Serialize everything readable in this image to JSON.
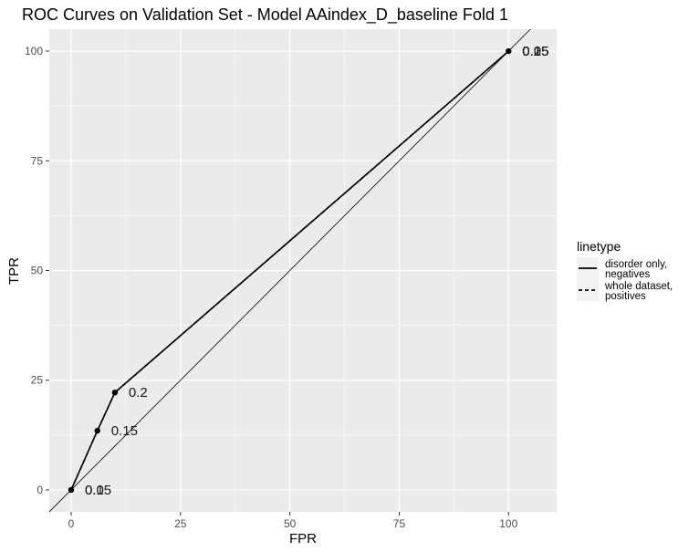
{
  "chart_data": {
    "type": "line",
    "title": "ROC Curves on Validation Set - Model AAindex_D_baseline Fold 1",
    "xlabel": "FPR",
    "ylabel": "TPR",
    "xlim": [
      -5,
      111
    ],
    "ylim": [
      -5,
      105
    ],
    "x_ticks": [
      0,
      25,
      50,
      75,
      100
    ],
    "y_ticks": [
      0,
      25,
      50,
      75,
      100
    ],
    "grid": true,
    "background": "#ebebeb",
    "grid_color": "#ffffff",
    "legend": {
      "title": "linetype",
      "position": "right",
      "entries": [
        {
          "line1": "disorder only,",
          "line2": "negatives",
          "dash": "solid"
        },
        {
          "line1": "whole dataset,",
          "line2": "positives",
          "dash": "dashed"
        }
      ]
    },
    "diagonal": true,
    "series": [
      {
        "linetype": "solid",
        "points": [
          {
            "x": 0,
            "y": 0,
            "label": "0.05"
          },
          {
            "x": 6,
            "y": 13.5,
            "label": "0.15"
          },
          {
            "x": 10,
            "y": 22.2,
            "label": "0.2"
          },
          {
            "x": 100,
            "y": 100,
            "label": "0.25"
          }
        ]
      },
      {
        "linetype": "dashed",
        "points": [
          {
            "x": 0,
            "y": 0,
            "label": "0.1"
          },
          {
            "x": 6,
            "y": 13.5,
            "label": ""
          },
          {
            "x": 10,
            "y": 22.2,
            "label": ""
          },
          {
            "x": 100,
            "y": 100,
            "label": "0.05"
          }
        ]
      }
    ],
    "overlapping_labels": [
      {
        "x": 100,
        "y": 100,
        "label": "0.1"
      },
      {
        "x": 100,
        "y": 100,
        "label": "0.15"
      }
    ]
  }
}
